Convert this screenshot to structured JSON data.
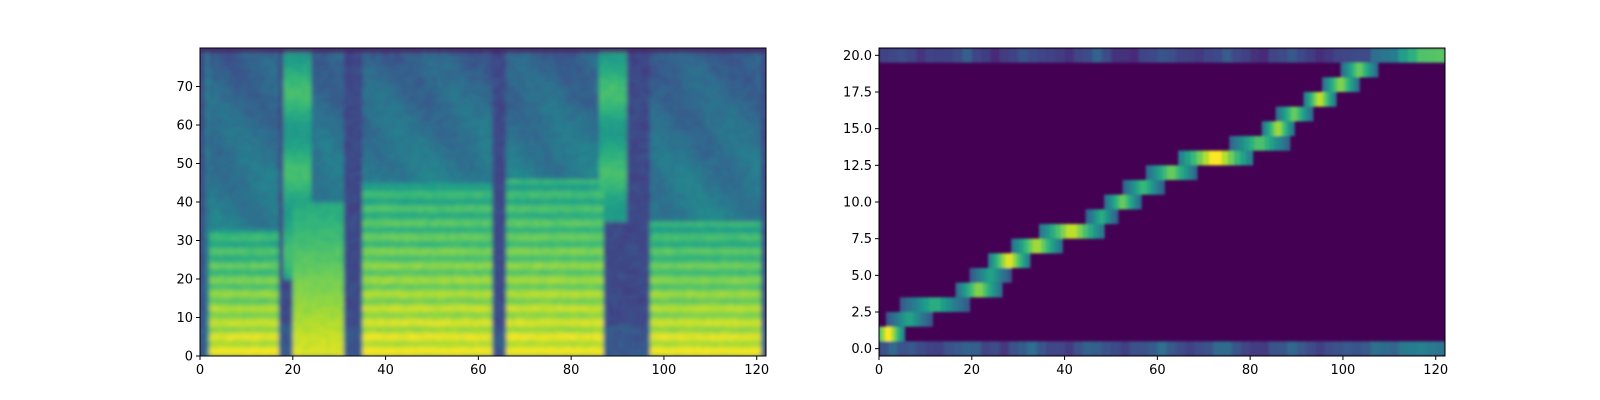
{
  "chart_data": [
    {
      "type": "heatmap",
      "subject": "mel-spectrogram",
      "title": "",
      "xlabel": "",
      "ylabel": "",
      "xlim": [
        0,
        122
      ],
      "ylim": [
        0,
        80
      ],
      "xticks": [
        0,
        20,
        40,
        60,
        80,
        100,
        120
      ],
      "yticks": [
        0,
        10,
        20,
        30,
        40,
        50,
        60,
        70
      ],
      "ytick_labels": [
        "0",
        "10",
        "20",
        "30",
        "40",
        "50",
        "60",
        "70"
      ],
      "colormap": "viridis",
      "frames": 122,
      "bins": 80,
      "grid": false,
      "legend": "none",
      "silence_columns": [
        [
          0,
          1
        ],
        [
          17,
          20
        ],
        [
          31,
          35
        ],
        [
          63,
          66
        ],
        [
          87,
          92
        ],
        [
          92,
          97
        ],
        [
          121,
          122
        ]
      ],
      "speech_segments": [
        {
          "x": [
            2,
            17
          ],
          "energy_top_bin": 33,
          "harmonics": true
        },
        {
          "x": [
            20,
            31
          ],
          "energy_top_bin": 40,
          "harmonics": false
        },
        {
          "x": [
            35,
            63
          ],
          "energy_top_bin": 45,
          "harmonics": true
        },
        {
          "x": [
            66,
            87
          ],
          "energy_top_bin": 46,
          "harmonics": true
        },
        {
          "x": [
            97,
            121
          ],
          "energy_top_bin": 35,
          "harmonics": true
        }
      ],
      "fricatives": [
        {
          "x": [
            18,
            24
          ],
          "bins": [
            20,
            80
          ]
        },
        {
          "x": [
            86,
            92
          ],
          "bins": [
            35,
            80
          ]
        }
      ]
    },
    {
      "type": "heatmap",
      "subject": "attention-alignment",
      "title": "",
      "xlabel": "",
      "ylabel": "",
      "xlim": [
        0,
        122
      ],
      "ylim": [
        -0.5,
        20.5
      ],
      "xticks": [
        0,
        20,
        40,
        60,
        80,
        100,
        120
      ],
      "yticks": [
        0,
        2.5,
        5,
        7.5,
        10,
        12.5,
        15,
        17.5,
        20
      ],
      "ytick_labels": [
        "0.0",
        "2.5",
        "5.0",
        "7.5",
        "10.0",
        "12.5",
        "15.0",
        "17.5",
        "20.0"
      ],
      "colormap": "viridis",
      "rows": 21,
      "grid": false,
      "legend": "none",
      "alignment_path": [
        {
          "row": 1,
          "x": [
            0,
            4
          ],
          "peak": 1.0
        },
        {
          "row": 2,
          "x": [
            3,
            10
          ],
          "peak": 0.55
        },
        {
          "row": 3,
          "x": [
            6,
            18
          ],
          "peak": 0.6
        },
        {
          "row": 4,
          "x": [
            18,
            25
          ],
          "peak": 0.8
        },
        {
          "row": 5,
          "x": [
            21,
            27
          ],
          "peak": 0.55
        },
        {
          "row": 6,
          "x": [
            25,
            31
          ],
          "peak": 0.95
        },
        {
          "row": 7,
          "x": [
            30,
            38
          ],
          "peak": 0.85
        },
        {
          "row": 8,
          "x": [
            36,
            47
          ],
          "peak": 0.9
        },
        {
          "row": 9,
          "x": [
            46,
            50
          ],
          "peak": 0.6
        },
        {
          "row": 10,
          "x": [
            50,
            55
          ],
          "peak": 0.75
        },
        {
          "row": 11,
          "x": [
            54,
            60
          ],
          "peak": 0.65
        },
        {
          "row": 12,
          "x": [
            59,
            67
          ],
          "peak": 0.75
        },
        {
          "row": 13,
          "x": [
            66,
            79
          ],
          "peak": 1.0
        },
        {
          "row": 14,
          "x": [
            77,
            87
          ],
          "peak": 0.7
        },
        {
          "row": 15,
          "x": [
            84,
            88
          ],
          "peak": 0.85
        },
        {
          "row": 16,
          "x": [
            87,
            92
          ],
          "peak": 0.75
        },
        {
          "row": 17,
          "x": [
            93,
            97
          ],
          "peak": 0.9
        },
        {
          "row": 18,
          "x": [
            97,
            102
          ],
          "peak": 0.8
        },
        {
          "row": 19,
          "x": [
            101,
            106
          ],
          "peak": 0.75
        }
      ],
      "background_bands": [
        {
          "row": 0,
          "x": [
            0,
            122
          ],
          "level": 0.25
        },
        {
          "row": 20,
          "x": [
            0,
            122
          ],
          "level": 0.2
        }
      ]
    }
  ]
}
